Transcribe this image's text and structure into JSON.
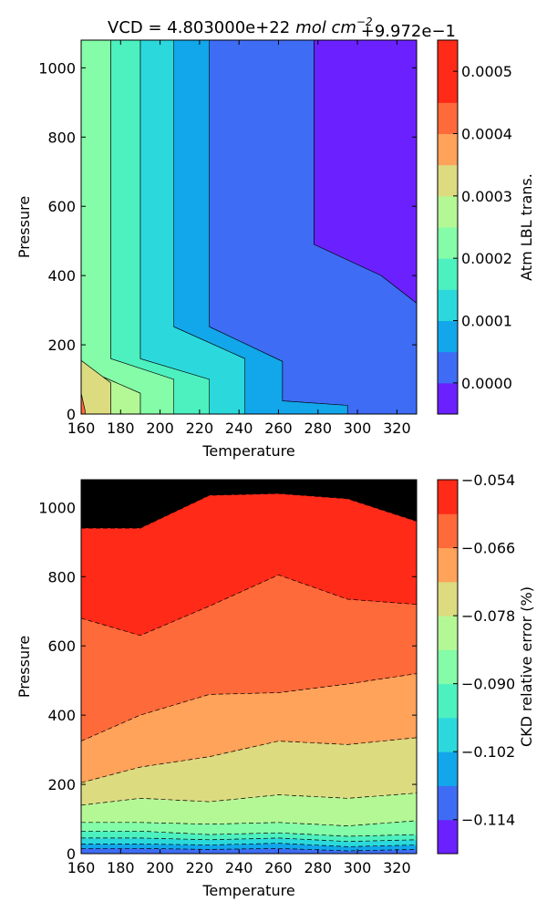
{
  "chart_data": [
    {
      "type": "contour",
      "title": "VCD = 4.803000e+22",
      "title_units": "mol cm",
      "title_units_exp": "−2",
      "offset_text": "+9.972e−1",
      "xlabel": "Temperature",
      "ylabel": "Pressure",
      "xlim": [
        160,
        330
      ],
      "ylim": [
        0,
        1080
      ],
      "xticks": [
        "160",
        "180",
        "200",
        "220",
        "240",
        "260",
        "280",
        "300",
        "320"
      ],
      "yticks": [
        "0",
        "200",
        "400",
        "600",
        "800",
        "1000"
      ],
      "colorbar_label": "Atm LBL trans.",
      "colorbar_ticks": [
        "0.0000",
        "0.0001",
        "0.0002",
        "0.0003",
        "0.0004",
        "0.0005"
      ],
      "colorbar_range": [
        -5e-05,
        0.00055
      ],
      "levels": [
        -5e-05,
        0.0,
        5e-05,
        0.0001,
        0.00015,
        0.0002,
        0.00025,
        0.0003,
        0.00035,
        0.0004,
        0.00045,
        0.0005,
        0.00055
      ],
      "contour_lines": "solid",
      "regions": [
        {
          "level_index": 1,
          "color": "#6b21ff",
          "points": [
            [
              278,
              1080
            ],
            [
              330,
              1080
            ],
            [
              330,
              320
            ],
            [
              312,
              400
            ],
            [
              278,
              490
            ]
          ]
        },
        {
          "level_index": 2,
          "color": "#3e6cf4",
          "points": [
            [
              225,
              1080
            ],
            [
              278,
              1080
            ],
            [
              278,
              490
            ],
            [
              312,
              400
            ],
            [
              330,
              320
            ],
            [
              330,
              0
            ],
            [
              295,
              0
            ],
            [
              295,
              25
            ],
            [
              262,
              38
            ],
            [
              262,
              152
            ],
            [
              225,
              252
            ]
          ]
        },
        {
          "level_index": 3,
          "color": "#12a6ea",
          "points": [
            [
              207,
              1080
            ],
            [
              225,
              1080
            ],
            [
              225,
              252
            ],
            [
              262,
              152
            ],
            [
              262,
              38
            ],
            [
              295,
              25
            ],
            [
              295,
              0
            ],
            [
              243,
              0
            ],
            [
              243,
              40
            ],
            [
              243,
              160
            ],
            [
              207,
              252
            ]
          ]
        },
        {
          "level_index": 4,
          "color": "#2bd9dd",
          "points": [
            [
              190,
              1080
            ],
            [
              207,
              1080
            ],
            [
              207,
              252
            ],
            [
              243,
              160
            ],
            [
              243,
              0
            ],
            [
              225,
              0
            ],
            [
              225,
              100
            ],
            [
              190,
              160
            ]
          ]
        },
        {
          "level_index": 5,
          "color": "#4df0bf",
          "points": [
            [
              175,
              1080
            ],
            [
              190,
              1080
            ],
            [
              190,
              160
            ],
            [
              225,
              100
            ],
            [
              225,
              0
            ],
            [
              207,
              0
            ],
            [
              207,
              100
            ],
            [
              175,
              160
            ]
          ]
        },
        {
          "level_index": 6,
          "color": "#84fca8",
          "points": [
            [
              160,
              1080
            ],
            [
              175,
              1080
            ],
            [
              175,
              160
            ],
            [
              207,
              100
            ],
            [
              207,
              0
            ],
            [
              190,
              0
            ],
            [
              190,
              60
            ],
            [
              160,
              135
            ]
          ]
        },
        {
          "level_index": 7,
          "color": "#b4f896",
          "points": [
            [
              160,
              135
            ],
            [
              190,
              60
            ],
            [
              190,
              0
            ],
            [
              175,
              0
            ],
            [
              175,
              90
            ],
            [
              160,
              155
            ]
          ]
        },
        {
          "level_index": 8,
          "color": "#dcdb80",
          "points": [
            [
              160,
              155
            ],
            [
              175,
              90
            ],
            [
              175,
              0
            ],
            [
              162,
              0
            ],
            [
              162,
              10
            ],
            [
              160,
              60
            ]
          ]
        },
        {
          "level_index": 10,
          "color": "#ff6a3a",
          "points": [
            [
              160,
              60
            ],
            [
              162,
              10
            ],
            [
              162,
              0
            ],
            [
              160,
              0
            ]
          ]
        }
      ]
    },
    {
      "type": "contour",
      "title": "",
      "xlabel": "Temperature",
      "ylabel": "Pressure",
      "xlim": [
        160,
        330
      ],
      "ylim": [
        0,
        1080
      ],
      "xticks": [
        "160",
        "180",
        "200",
        "220",
        "240",
        "260",
        "280",
        "300",
        "320"
      ],
      "yticks": [
        "0",
        "200",
        "400",
        "600",
        "800",
        "1000"
      ],
      "colorbar_label": "CKD relative error (%)",
      "colorbar_ticks": [
        "−0.054",
        "−0.066",
        "−0.078",
        "−0.090",
        "−0.102",
        "−0.114"
      ],
      "colorbar_tick_values": [
        -0.054,
        -0.066,
        -0.078,
        -0.09,
        -0.102,
        -0.114
      ],
      "colorbar_range": [
        -0.12,
        -0.054
      ],
      "levels": [
        -0.12,
        -0.114,
        -0.108,
        -0.102,
        -0.096,
        -0.09,
        -0.084,
        -0.078,
        -0.072,
        -0.066,
        -0.06,
        -0.054
      ],
      "contour_lines": "dashed",
      "boundaries": [
        [
          [
            160,
            0
          ],
          [
            330,
            0
          ]
        ],
        [
          [
            160,
            15
          ],
          [
            190,
            15
          ],
          [
            225,
            12
          ],
          [
            260,
            15
          ],
          [
            295,
            8
          ],
          [
            330,
            12
          ]
        ],
        [
          [
            160,
            28
          ],
          [
            190,
            28
          ],
          [
            225,
            25
          ],
          [
            260,
            30
          ],
          [
            295,
            20
          ],
          [
            330,
            25
          ]
        ],
        [
          [
            160,
            45
          ],
          [
            190,
            45
          ],
          [
            225,
            40
          ],
          [
            260,
            45
          ],
          [
            295,
            35
          ],
          [
            330,
            40
          ]
        ],
        [
          [
            160,
            65
          ],
          [
            190,
            65
          ],
          [
            225,
            55
          ],
          [
            260,
            60
          ],
          [
            295,
            50
          ],
          [
            330,
            55
          ]
        ],
        [
          [
            160,
            90
          ],
          [
            190,
            90
          ],
          [
            225,
            85
          ],
          [
            260,
            90
          ],
          [
            295,
            80
          ],
          [
            330,
            95
          ]
        ],
        [
          [
            160,
            140
          ],
          [
            190,
            160
          ],
          [
            225,
            150
          ],
          [
            260,
            170
          ],
          [
            295,
            160
          ],
          [
            330,
            175
          ]
        ],
        [
          [
            160,
            205
          ],
          [
            190,
            250
          ],
          [
            225,
            280
          ],
          [
            260,
            325
          ],
          [
            295,
            315
          ],
          [
            330,
            335
          ]
        ],
        [
          [
            160,
            325
          ],
          [
            190,
            400
          ],
          [
            225,
            460
          ],
          [
            260,
            465
          ],
          [
            295,
            490
          ],
          [
            330,
            520
          ]
        ],
        [
          [
            160,
            680
          ],
          [
            190,
            630
          ],
          [
            225,
            715
          ],
          [
            260,
            805
          ],
          [
            295,
            735
          ],
          [
            330,
            720
          ]
        ],
        [
          [
            160,
            940
          ],
          [
            190,
            940
          ],
          [
            225,
            1035
          ],
          [
            260,
            1040
          ],
          [
            295,
            1025
          ],
          [
            330,
            960
          ]
        ],
        [
          [
            160,
            1080
          ],
          [
            330,
            1080
          ]
        ]
      ],
      "band_colors": [
        "#3e6cf4",
        "#12a6ea",
        "#2bd9dd",
        "#4df0bf",
        "#84fca8",
        "#b4f896",
        "#dcdb80",
        "#ffa25a",
        "#ff6a3a",
        "#ff2a18"
      ]
    }
  ]
}
